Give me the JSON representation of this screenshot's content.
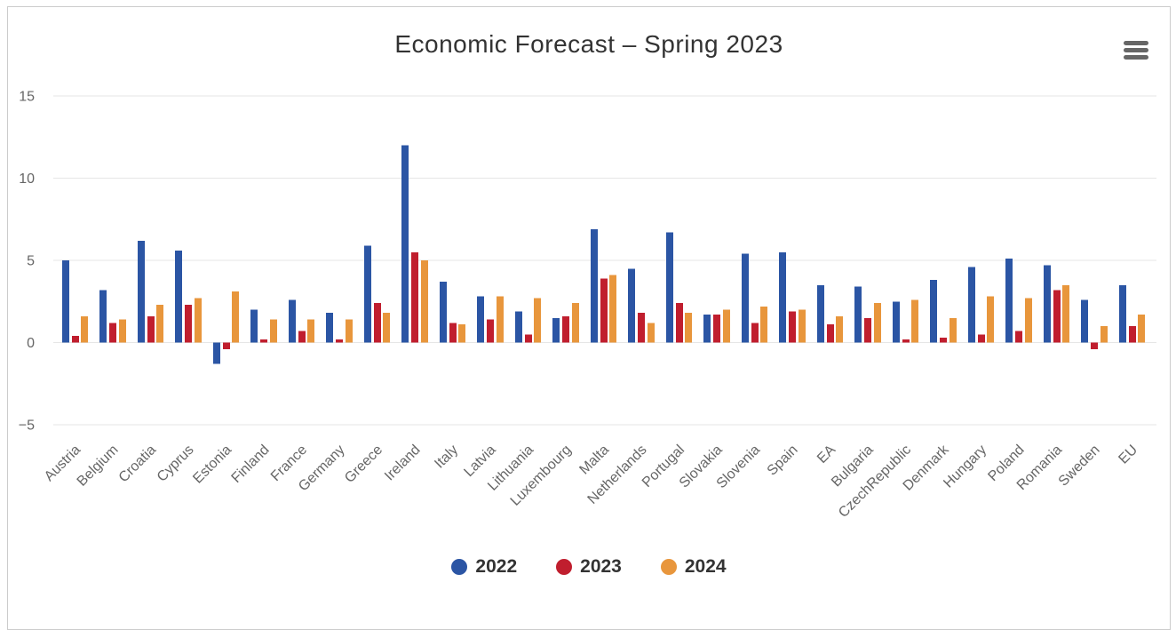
{
  "chart_data": {
    "type": "bar",
    "title": "Economic Forecast – Spring 2023",
    "xlabel": "",
    "ylabel": "",
    "ylim": [
      -5,
      15
    ],
    "yticks": [
      -5,
      0,
      5,
      10,
      15
    ],
    "grid": true,
    "legend_position": "bottom",
    "categories": [
      "Austria",
      "Belgium",
      "Croatia",
      "Cyprus",
      "Estonia",
      "Finland",
      "France",
      "Germany",
      "Greece",
      "Ireland",
      "Italy",
      "Latvia",
      "Lithuania",
      "Luxembourg",
      "Malta",
      "Netherlands",
      "Portugal",
      "Slovakia",
      "Slovenia",
      "Spain",
      "EA",
      "Bulgaria",
      "CzechRepublic",
      "Denmark",
      "Hungary",
      "Poland",
      "Romania",
      "Sweden",
      "EU"
    ],
    "series": [
      {
        "name": "2022",
        "color": "#2b55a4",
        "values": [
          5.0,
          3.2,
          6.2,
          5.6,
          -1.3,
          2.0,
          2.6,
          1.8,
          5.9,
          12.0,
          3.7,
          2.8,
          1.9,
          1.5,
          6.9,
          4.5,
          6.7,
          1.7,
          5.4,
          5.5,
          3.5,
          3.4,
          2.5,
          3.8,
          4.6,
          5.1,
          4.7,
          2.6,
          3.5
        ]
      },
      {
        "name": "2023",
        "color": "#c01e2e",
        "values": [
          0.4,
          1.2,
          1.6,
          2.3,
          -0.4,
          0.2,
          0.7,
          0.2,
          2.4,
          5.5,
          1.2,
          1.4,
          0.5,
          1.6,
          3.9,
          1.8,
          2.4,
          1.7,
          1.2,
          1.9,
          1.1,
          1.5,
          0.2,
          0.3,
          0.5,
          0.7,
          3.2,
          -0.4,
          1.0
        ]
      },
      {
        "name": "2024",
        "color": "#e8963c",
        "values": [
          1.6,
          1.4,
          2.3,
          2.7,
          3.1,
          1.4,
          1.4,
          1.4,
          1.8,
          5.0,
          1.1,
          2.8,
          2.7,
          2.4,
          4.1,
          1.2,
          1.8,
          2.0,
          2.2,
          2.0,
          1.6,
          2.4,
          2.6,
          1.5,
          2.8,
          2.7,
          3.5,
          1.0,
          1.7
        ]
      }
    ]
  },
  "icons": {
    "menu": "hamburger-menu-icon"
  },
  "colors": {
    "gridline": "#e6e6e6",
    "axis_label": "#666666",
    "title_text": "#333333",
    "legend_text": "#333333",
    "container_border": "#cccccc",
    "menu_icon": "#666666"
  }
}
